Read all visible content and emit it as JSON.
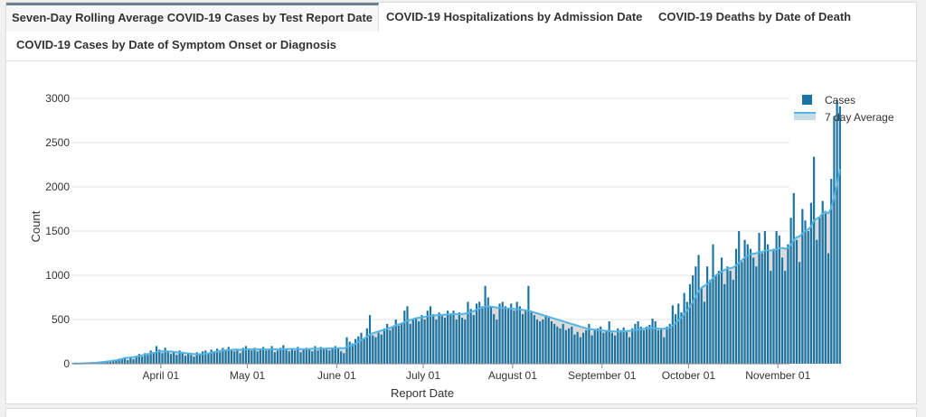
{
  "tabs": [
    {
      "label": "Seven-Day Rolling Average COVID-19 Cases by Test Report Date",
      "active": true
    },
    {
      "label": "COVID-19 Hospitalizations by Admission Date",
      "active": false
    },
    {
      "label": "COVID-19 Deaths by Date of Death",
      "active": false
    },
    {
      "label": "COVID-19 Cases by Date of Symptom Onset or Diagnosis",
      "active": false
    }
  ],
  "colors": {
    "bar": "#1a74a3",
    "avg_line": "#53b5e6",
    "avg_fill": "#d6d6d6"
  },
  "chart_data": {
    "type": "bar",
    "xlabel": "Report Date",
    "ylabel": "Count",
    "ylim": [
      0,
      3000
    ],
    "yticks": [
      0,
      500,
      1000,
      1500,
      2000,
      2500,
      3000
    ],
    "xlim": [
      "2020-03-01",
      "2020-11-05"
    ],
    "xticks": [
      {
        "date": "2020-04-01",
        "label": "April 01"
      },
      {
        "date": "2020-05-01",
        "label": "May 01"
      },
      {
        "date": "2020-06-01",
        "label": "June 01"
      },
      {
        "date": "2020-07-01",
        "label": "July 01"
      },
      {
        "date": "2020-08-01",
        "label": "August 01"
      },
      {
        "date": "2020-09-01",
        "label": "September 01"
      },
      {
        "date": "2020-10-01",
        "label": "October 01"
      },
      {
        "date": "2020-11-01",
        "label": "November 01"
      }
    ],
    "grid": true,
    "legend_position": "top-right",
    "series": [
      {
        "name": "Cases",
        "kind": "bar",
        "start": "2020-03-01",
        "values": [
          2,
          3,
          3,
          4,
          5,
          6,
          8,
          10,
          12,
          15,
          18,
          22,
          26,
          30,
          35,
          40,
          50,
          60,
          75,
          40,
          70,
          50,
          90,
          110,
          80,
          120,
          100,
          150,
          130,
          200,
          160,
          120,
          180,
          140,
          110,
          130,
          100,
          150,
          120,
          90,
          110,
          100,
          80,
          130,
          110,
          140,
          150,
          120,
          160,
          140,
          170,
          130,
          180,
          150,
          190,
          160,
          140,
          170,
          120,
          180,
          200,
          170,
          150,
          180,
          140,
          160,
          190,
          150,
          170,
          200,
          130,
          150,
          180,
          210,
          160,
          140,
          170,
          150,
          190,
          130,
          160,
          180,
          170,
          140,
          200,
          150,
          190,
          170,
          160,
          150,
          180,
          200,
          170,
          140,
          120,
          300,
          250,
          230,
          280,
          310,
          350,
          280,
          400,
          550,
          320,
          300,
          350,
          330,
          400,
          450,
          380,
          420,
          500,
          430,
          460,
          600,
          650,
          450,
          500,
          520,
          480,
          550,
          500,
          600,
          650,
          560,
          500,
          580,
          540,
          520,
          600,
          550,
          600,
          500,
          580,
          520,
          500,
          700,
          620,
          550,
          680,
          700,
          650,
          880,
          750,
          640,
          560,
          500,
          680,
          700,
          650,
          620,
          680,
          600,
          700,
          650,
          560,
          600,
          880,
          580,
          550,
          500,
          480,
          500,
          550,
          520,
          480,
          450,
          420,
          400,
          450,
          380,
          400,
          420,
          330,
          360,
          300,
          350,
          380,
          450,
          320,
          380,
          400,
          420,
          350,
          380,
          480,
          350,
          320,
          400,
          380,
          410,
          360,
          300,
          400,
          450,
          480,
          420,
          380,
          420,
          440,
          510,
          480,
          380,
          400,
          300,
          420,
          450,
          660,
          560,
          680,
          580,
          800,
          700,
          900,
          1000,
          1100,
          1230,
          850,
          700,
          1100,
          950,
          1350,
          1000,
          1050,
          1200,
          900,
          1100,
          1050,
          950,
          1300,
          1500,
          1150,
          1400,
          1350,
          1300,
          1200,
          1100,
          1480,
          1250,
          1500,
          1350,
          1050,
          1300,
          1500,
          1450,
          1200,
          1050,
          1350,
          1650,
          1930,
          1400,
          1150,
          1750,
          1620,
          1500,
          1820,
          2340,
          1400,
          1650,
          1840,
          1700,
          1250,
          2090,
          2800,
          2980,
          2910
        ]
      },
      {
        "name": "7 day Average",
        "kind": "area",
        "start": "2020-03-01",
        "values": [
          2,
          3,
          3,
          4,
          5,
          6,
          8,
          10,
          12,
          15,
          18,
          22,
          26,
          30,
          35,
          40,
          47,
          55,
          64,
          68,
          72,
          75,
          80,
          88,
          95,
          104,
          110,
          117,
          122,
          132,
          138,
          140,
          141,
          140,
          138,
          135,
          130,
          128,
          125,
          120,
          118,
          114,
          110,
          108,
          108,
          110,
          114,
          118,
          125,
          133,
          140,
          145,
          150,
          152,
          155,
          157,
          160,
          160,
          158,
          158,
          162,
          165,
          165,
          166,
          164,
          163,
          163,
          162,
          162,
          164,
          165,
          163,
          162,
          164,
          166,
          167,
          168,
          167,
          167,
          166,
          164,
          165,
          167,
          170,
          171,
          171,
          172,
          171,
          172,
          173,
          175,
          175,
          176,
          177,
          175,
          190,
          200,
          210,
          225,
          245,
          265,
          285,
          305,
          330,
          345,
          355,
          365,
          375,
          385,
          395,
          405,
          420,
          435,
          445,
          455,
          470,
          485,
          495,
          505,
          515,
          520,
          525,
          530,
          535,
          540,
          545,
          548,
          550,
          552,
          555,
          558,
          560,
          562,
          560,
          558,
          562,
          568,
          575,
          585,
          595,
          610,
          625,
          635,
          645,
          650,
          645,
          640,
          635,
          632,
          630,
          628,
          625,
          622,
          620,
          618,
          615,
          610,
          605,
          600,
          590,
          580,
          570,
          560,
          550,
          540,
          530,
          520,
          510,
          500,
          490,
          480,
          470,
          460,
          450,
          440,
          430,
          420,
          410,
          400,
          395,
          390,
          385,
          380,
          378,
          375,
          372,
          370,
          368,
          365,
          362,
          365,
          368,
          370,
          372,
          375,
          380,
          385,
          390,
          395,
          400,
          402,
          405,
          400,
          398,
          395,
          395,
          400,
          410,
          430,
          460,
          490,
          520,
          560,
          600,
          650,
          700,
          760,
          820,
          860,
          880,
          900,
          930,
          970,
          1000,
          1020,
          1040,
          1060,
          1075,
          1080,
          1090,
          1110,
          1140,
          1170,
          1200,
          1220,
          1235,
          1245,
          1250,
          1260,
          1265,
          1275,
          1285,
          1280,
          1285,
          1295,
          1305,
          1310,
          1300,
          1310,
          1340,
          1400,
          1430,
          1440,
          1470,
          1500,
          1520,
          1550,
          1620,
          1640,
          1660,
          1700,
          1720,
          1700,
          1760,
          1880,
          2030,
          2200
        ]
      }
    ]
  }
}
